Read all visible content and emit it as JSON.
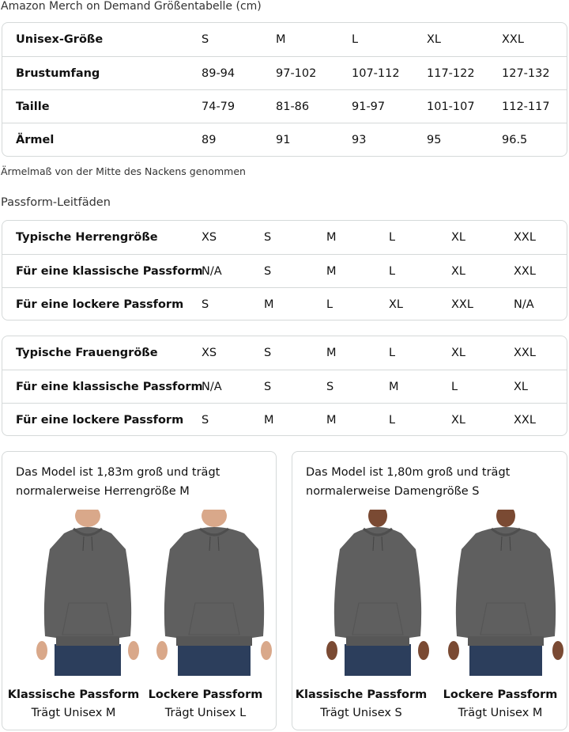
{
  "size_chart": {
    "title": "Amazon Merch on Demand Größentabelle (cm)",
    "rows": [
      {
        "label": "Unisex-Größe",
        "values": [
          "S",
          "M",
          "L",
          "XL",
          "XXL"
        ]
      },
      {
        "label": "Brustumfang",
        "values": [
          "89-94",
          "97-102",
          "107-112",
          "117-122",
          "127-132"
        ]
      },
      {
        "label": "Taille",
        "values": [
          "74-79",
          "81-86",
          "91-97",
          "101-107",
          "112-117"
        ]
      },
      {
        "label": "Ärmel",
        "values": [
          "89",
          "91",
          "93",
          "95",
          "96.5"
        ]
      }
    ],
    "note": "Ärmelmaß von der Mitte des Nackens genommen"
  },
  "fit_guides": {
    "title": "Passform-Leitfäden",
    "men": [
      {
        "label": "Typische Herrengröße",
        "values": [
          "XS",
          "S",
          "M",
          "L",
          "XL",
          "XXL"
        ]
      },
      {
        "label": "Für eine klassische Passform",
        "values": [
          "N/A",
          "S",
          "M",
          "L",
          "XL",
          "XXL"
        ]
      },
      {
        "label": "Für eine lockere Passform",
        "values": [
          "S",
          "M",
          "L",
          "XL",
          "XXL",
          "N/A"
        ]
      }
    ],
    "women": [
      {
        "label": "Typische Frauengröße",
        "values": [
          "XS",
          "S",
          "M",
          "L",
          "XL",
          "XXL"
        ]
      },
      {
        "label": "Für eine klassische Passform",
        "values": [
          "N/A",
          "S",
          "S",
          "M",
          "L",
          "XL"
        ]
      },
      {
        "label": "Für eine lockere Passform",
        "values": [
          "S",
          "M",
          "M",
          "L",
          "XL",
          "XXL"
        ]
      }
    ]
  },
  "models": [
    {
      "desc": "Das Model ist 1,83m groß und trägt normalerweise Herrengröße M",
      "fits": [
        {
          "title": "Klassische Passform",
          "sub": "Trägt Unisex M"
        },
        {
          "title": "Lockere Passform",
          "sub": "Trägt Unisex L"
        }
      ]
    },
    {
      "desc": "Das Model ist 1,80m groß und trägt normalerweise Damengröße S",
      "fits": [
        {
          "title": "Klassische Passform",
          "sub": "Trägt Unisex S"
        },
        {
          "title": "Lockere Passform",
          "sub": "Trägt Unisex M"
        }
      ]
    }
  ],
  "colors": {
    "hoodie": "#5f5f5f",
    "jeans": "#2c3e5c",
    "skin_man": "#d9a88a",
    "skin_woman": "#7a4a33",
    "border": "#d5d9d9"
  }
}
